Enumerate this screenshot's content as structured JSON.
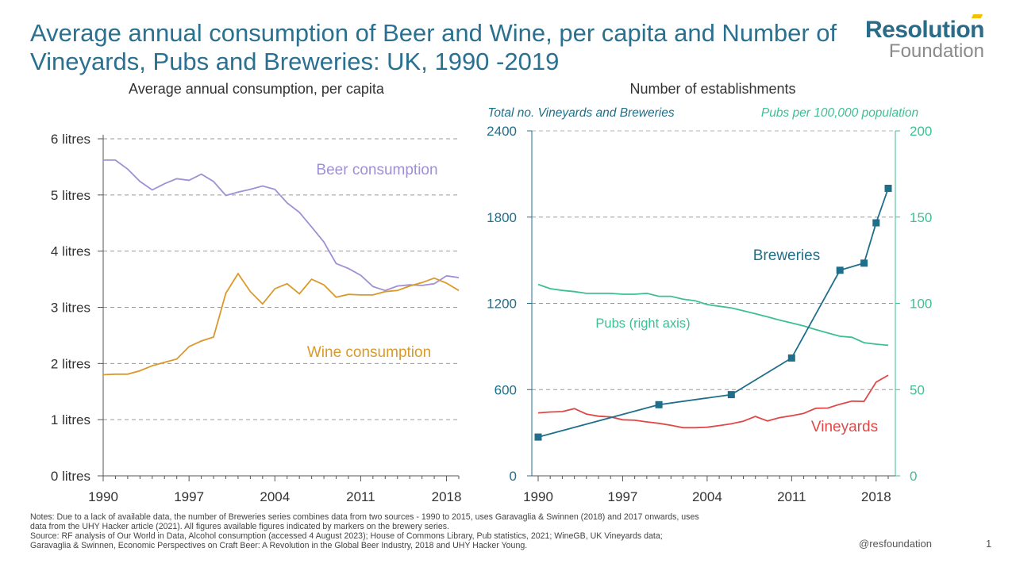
{
  "title": "Average annual consumption of Beer and Wine, per capita and Number of Vineyards, Pubs and Breweries: UK, 1990 -2019",
  "logo": {
    "line1": "Resolution",
    "line2": "Foundation"
  },
  "notes": {
    "line1": "Notes: Due to a lack of available data, the number of Breweries series combines data from two sources - 1990 to 2015, uses Garavaglia & Swinnen (2018) and 2017 onwards, uses",
    "line2": "data from the UHY Hacker article (2021). All figures available figures indicated by markers on the brewery series.",
    "line3": "Source: RF analysis of Our World in Data, Alcohol consumption (accessed 4 August 2023); House of Commons Library, Pub statistics, 2021; WineGB, UK Vineyards data;",
    "line4": "Garavaglia & Swinnen, Economic Perspectives on Craft Beer: A Revolution in the Global Beer Industry, 2018 and UHY Hacker Young."
  },
  "handle": "@resfoundation",
  "page_number": "1",
  "colors": {
    "beer": "#a08fd4",
    "wine": "#d99a2b",
    "breweries": "#1f6f8b",
    "pubs": "#3dbf96",
    "vineyards": "#e04848",
    "title": "#2a7091"
  },
  "chart_data": [
    {
      "type": "line",
      "title": "Average annual consumption, per capita",
      "ylim": [
        0,
        6
      ],
      "xlim": [
        1990,
        2019
      ],
      "x_ticks": [
        "1990",
        "1997",
        "2004",
        "2011",
        "2018"
      ],
      "y_ticks": [
        "0 litres",
        "1 litres",
        "2 litres",
        "3 litres",
        "4 litres",
        "5 litres",
        "6 litres"
      ],
      "grid": "horizontal dashed",
      "series": [
        {
          "name": "Beer consumption",
          "x": [
            1990,
            1991,
            1992,
            1993,
            1994,
            1995,
            1996,
            1997,
            1998,
            1999,
            2000,
            2001,
            2002,
            2003,
            2004,
            2005,
            2006,
            2007,
            2008,
            2009,
            2010,
            2011,
            2012,
            2013,
            2014,
            2015,
            2016,
            2017,
            2018,
            2019
          ],
          "values": [
            5.62,
            5.62,
            5.46,
            5.24,
            5.09,
            5.2,
            5.29,
            5.26,
            5.37,
            5.24,
            4.99,
            5.05,
            5.1,
            5.16,
            5.1,
            4.86,
            4.69,
            4.43,
            4.16,
            3.78,
            3.69,
            3.57,
            3.37,
            3.3,
            3.38,
            3.4,
            3.39,
            3.42,
            3.56,
            3.53
          ]
        },
        {
          "name": "Wine consumption",
          "x": [
            1990,
            1991,
            1992,
            1993,
            1994,
            1995,
            1996,
            1997,
            1998,
            1999,
            2000,
            2001,
            2002,
            2003,
            2004,
            2005,
            2006,
            2007,
            2008,
            2009,
            2010,
            2011,
            2012,
            2013,
            2014,
            2015,
            2016,
            2017,
            2018,
            2019
          ],
          "values": [
            1.8,
            1.81,
            1.81,
            1.87,
            1.96,
            2.02,
            2.08,
            2.3,
            2.4,
            2.47,
            3.25,
            3.6,
            3.28,
            3.06,
            3.33,
            3.42,
            3.24,
            3.5,
            3.4,
            3.18,
            3.23,
            3.22,
            3.22,
            3.28,
            3.3,
            3.38,
            3.44,
            3.52,
            3.43,
            3.3
          ]
        }
      ]
    },
    {
      "type": "line",
      "title": "Number of establishments",
      "left_axis_label": "Total no. Vineyards and Breweries",
      "right_axis_label": "Pubs per 100,000 population",
      "ylim_left": [
        0,
        2400
      ],
      "ylim_right": [
        0,
        200
      ],
      "xlim": [
        1990,
        2019
      ],
      "x_ticks": [
        "1990",
        "1997",
        "2004",
        "2011",
        "2018"
      ],
      "y_ticks_left": [
        "0",
        "600",
        "1200",
        "1800",
        "2400"
      ],
      "y_ticks_right": [
        "0",
        "50",
        "100",
        "150",
        "200"
      ],
      "grid": "horizontal dashed",
      "series": [
        {
          "name": "Breweries",
          "axis": "left",
          "markers": true,
          "x": [
            1990,
            2000,
            2006,
            2011,
            2015,
            2017,
            2018,
            2019
          ],
          "values": [
            270,
            495,
            565,
            820,
            1430,
            1480,
            1760,
            2000
          ]
        },
        {
          "name": "Pubs (right axis)",
          "axis": "right",
          "x": [
            1990,
            1991,
            1992,
            1993,
            1994,
            1995,
            1996,
            1997,
            1998,
            1999,
            2000,
            2001,
            2002,
            2003,
            2004,
            2005,
            2006,
            2007,
            2008,
            2009,
            2010,
            2011,
            2012,
            2013,
            2014,
            2015,
            2016,
            2017,
            2018,
            2019
          ],
          "values": [
            111,
            108.5,
            107.5,
            106.8,
            105.8,
            105.8,
            105.8,
            105.3,
            105.3,
            105.8,
            104.1,
            104.1,
            102.4,
            101.5,
            99.3,
            98.3,
            97.4,
            95.7,
            94,
            92.2,
            90.3,
            88.6,
            86.9,
            84.8,
            82.8,
            80.9,
            80.3,
            77.2,
            76.3,
            75.7
          ]
        },
        {
          "name": "Vineyards",
          "axis": "left",
          "x": [
            1990,
            1991,
            1992,
            1993,
            1994,
            1995,
            1996,
            1997,
            1998,
            1999,
            2000,
            2001,
            2002,
            2003,
            2004,
            2005,
            2006,
            2007,
            2008,
            2009,
            2010,
            2011,
            2012,
            2013,
            2014,
            2015,
            2016,
            2017,
            2018,
            2019
          ],
          "values": [
            438,
            444,
            447,
            468,
            430,
            415,
            410,
            390,
            387,
            375,
            365,
            352,
            335,
            335,
            338,
            350,
            362,
            380,
            413,
            382,
            405,
            418,
            435,
            470,
            472,
            498,
            520,
            518,
            652,
            700
          ]
        }
      ]
    }
  ]
}
